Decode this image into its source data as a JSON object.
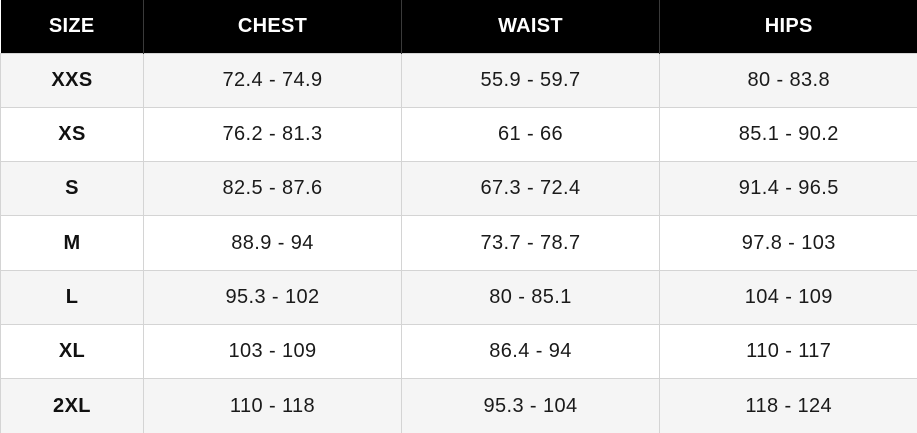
{
  "headers": {
    "size": "SIZE",
    "chest": "CHEST",
    "waist": "WAIST",
    "hips": "HIPS"
  },
  "rows": [
    {
      "size": "XXS",
      "chest": "72.4 - 74.9",
      "waist": "55.9 - 59.7",
      "hips": "80 - 83.8"
    },
    {
      "size": "XS",
      "chest": "76.2 - 81.3",
      "waist": "61 - 66",
      "hips": "85.1 - 90.2"
    },
    {
      "size": "S",
      "chest": "82.5 - 87.6",
      "waist": "67.3 - 72.4",
      "hips": "91.4 - 96.5"
    },
    {
      "size": "M",
      "chest": "88.9 - 94",
      "waist": "73.7 - 78.7",
      "hips": "97.8 - 103"
    },
    {
      "size": "L",
      "chest": "95.3 - 102",
      "waist": "80 - 85.1",
      "hips": "104 - 109"
    },
    {
      "size": "XL",
      "chest": "103 - 109",
      "waist": "86.4 - 94",
      "hips": "110 - 117"
    },
    {
      "size": "2XL",
      "chest": "110 - 118",
      "waist": "95.3 - 104",
      "hips": "118 - 124"
    }
  ],
  "colors": {
    "header_bg": "#000000",
    "header_text": "#ffffff",
    "row_alt_bg": "#f5f5f5",
    "row_bg": "#ffffff",
    "grid_line": "#d4d4d4"
  }
}
